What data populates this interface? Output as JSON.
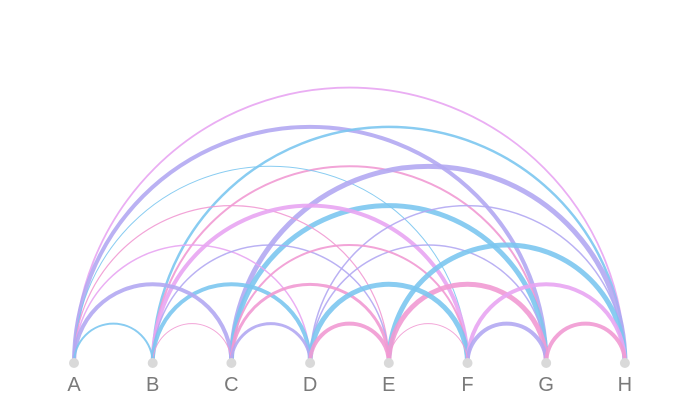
{
  "diagram": {
    "type": "arc-diagram",
    "nodes": [
      "A",
      "B",
      "C",
      "D",
      "E",
      "F",
      "G",
      "H"
    ],
    "colors": {
      "node": "#d9d9d9",
      "label": "#7a7a7a",
      "blue": "#7cc7f0",
      "purple": "#b3a8f2",
      "pink": "#f19ad3",
      "violet": "#e8a5f2"
    },
    "links": [
      {
        "source": "A",
        "target": "B",
        "color": "blue",
        "weight": 2
      },
      {
        "source": "A",
        "target": "C",
        "color": "purple",
        "weight": 4
      },
      {
        "source": "A",
        "target": "D",
        "color": "violet",
        "weight": 1.5
      },
      {
        "source": "A",
        "target": "E",
        "color": "pink",
        "weight": 1.2
      },
      {
        "source": "A",
        "target": "F",
        "color": "blue",
        "weight": 1
      },
      {
        "source": "A",
        "target": "G",
        "color": "purple",
        "weight": 4
      },
      {
        "source": "A",
        "target": "H",
        "color": "violet",
        "weight": 1.8
      },
      {
        "source": "B",
        "target": "C",
        "color": "pink",
        "weight": 1
      },
      {
        "source": "B",
        "target": "D",
        "color": "blue",
        "weight": 4
      },
      {
        "source": "B",
        "target": "E",
        "color": "purple",
        "weight": 1.5
      },
      {
        "source": "B",
        "target": "F",
        "color": "violet",
        "weight": 4
      },
      {
        "source": "B",
        "target": "G",
        "color": "pink",
        "weight": 2
      },
      {
        "source": "B",
        "target": "H",
        "color": "blue",
        "weight": 2.5
      },
      {
        "source": "C",
        "target": "D",
        "color": "purple",
        "weight": 3
      },
      {
        "source": "C",
        "target": "E",
        "color": "pink",
        "weight": 3
      },
      {
        "source": "C",
        "target": "F",
        "color": "pink",
        "weight": 2
      },
      {
        "source": "C",
        "target": "G",
        "color": "blue",
        "weight": 5
      },
      {
        "source": "C",
        "target": "H",
        "color": "purple",
        "weight": 5
      },
      {
        "source": "D",
        "target": "E",
        "color": "pink",
        "weight": 4
      },
      {
        "source": "D",
        "target": "F",
        "color": "blue",
        "weight": 5
      },
      {
        "source": "D",
        "target": "G",
        "color": "purple",
        "weight": 1.5
      },
      {
        "source": "D",
        "target": "H",
        "color": "purple",
        "weight": 1.5
      },
      {
        "source": "E",
        "target": "F",
        "color": "pink",
        "weight": 1
      },
      {
        "source": "E",
        "target": "G",
        "color": "pink",
        "weight": 5
      },
      {
        "source": "E",
        "target": "H",
        "color": "blue",
        "weight": 5
      },
      {
        "source": "F",
        "target": "G",
        "color": "purple",
        "weight": 4
      },
      {
        "source": "F",
        "target": "H",
        "color": "violet",
        "weight": 4
      },
      {
        "source": "G",
        "target": "H",
        "color": "pink",
        "weight": 4
      }
    ]
  }
}
